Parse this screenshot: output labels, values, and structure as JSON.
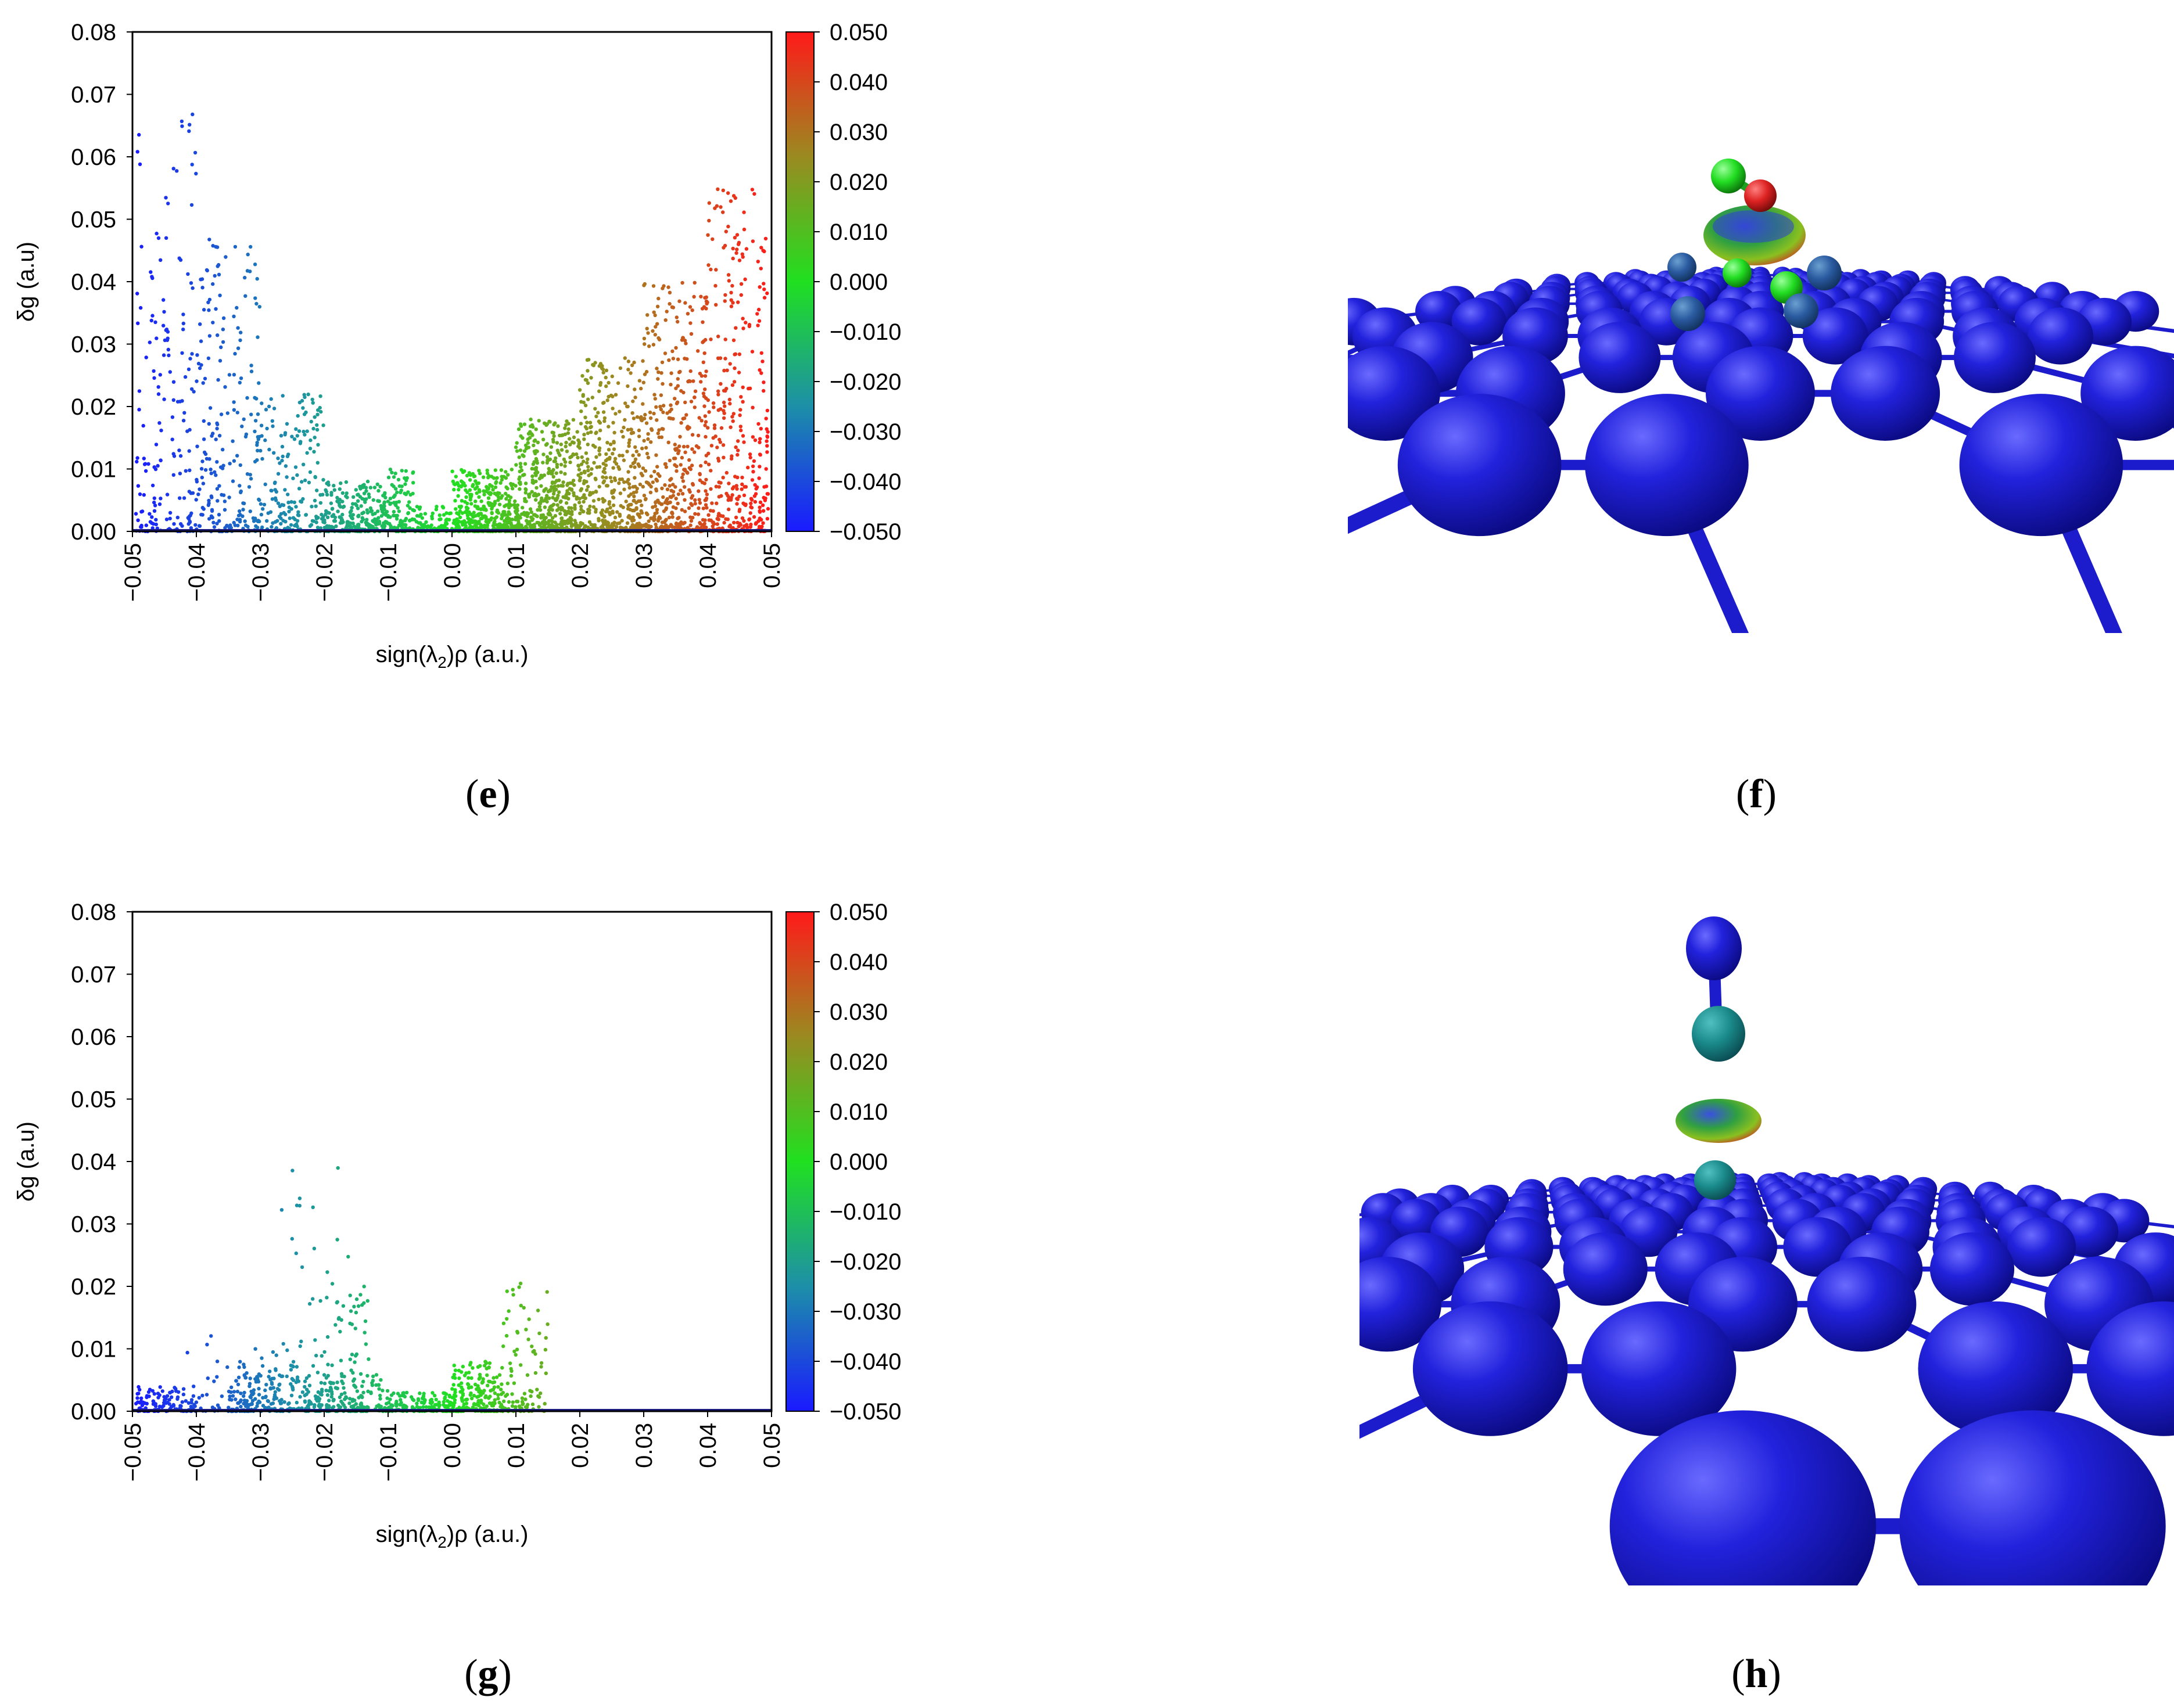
{
  "panels": [
    {
      "id": "e",
      "caption_letter": "e",
      "open": "(",
      "close": ")"
    },
    {
      "id": "f",
      "caption_letter": "f",
      "open": "(",
      "close": ")"
    },
    {
      "id": "g",
      "caption_letter": "g",
      "open": "(",
      "close": ")"
    },
    {
      "id": "h",
      "caption_letter": "h",
      "open": "(",
      "close": ")"
    }
  ],
  "colors": {
    "blue": "#1a1acc",
    "green": "#20d020",
    "red": "#e02020",
    "bond": "#1c1ccc"
  },
  "chart_data": [
    {
      "id": "e",
      "type": "scatter",
      "xlabel": "sign(λ₂)ρ (a.u.)",
      "xlabel_prefix": "sign(λ",
      "xlabel_sub": "2",
      "xlabel_suffix": ")ρ (a.u.)",
      "ylabel": "δg (a.u)",
      "xlim": [
        -0.05,
        0.05
      ],
      "ylim": [
        0.0,
        0.08
      ],
      "xticks": [
        "−0.05",
        "−0.04",
        "−0.03",
        "−0.02",
        "−0.01",
        "0.00",
        "0.01",
        "0.02",
        "0.03",
        "0.04",
        "0.05"
      ],
      "yticks": [
        "0.00",
        "0.01",
        "0.02",
        "0.03",
        "0.04",
        "0.05",
        "0.06",
        "0.07",
        "0.08"
      ],
      "colorbar": {
        "range": [
          -0.05,
          0.05
        ],
        "ticks": [
          "0.050",
          "0.040",
          "0.030",
          "0.020",
          "0.010",
          "0.000",
          "−0.010",
          "−0.020",
          "−0.030",
          "−0.040",
          "−0.050"
        ]
      },
      "regions": [
        {
          "x0": -0.0495,
          "x1": -0.04,
          "ymax": 0.068,
          "n": 180
        },
        {
          "x0": -0.04,
          "x1": -0.03,
          "ymax": 0.05,
          "n": 220
        },
        {
          "x0": -0.03,
          "x1": -0.02,
          "ymax": 0.022,
          "n": 200
        },
        {
          "x0": -0.02,
          "x1": -0.01,
          "ymax": 0.008,
          "n": 260
        },
        {
          "x0": -0.01,
          "x1": -0.006,
          "ymax": 0.01,
          "n": 100
        },
        {
          "x0": -0.006,
          "x1": 0.0,
          "ymax": 0.004,
          "n": 80
        },
        {
          "x0": 0.0,
          "x1": 0.01,
          "ymax": 0.01,
          "n": 400
        },
        {
          "x0": 0.01,
          "x1": 0.02,
          "ymax": 0.018,
          "n": 500
        },
        {
          "x0": 0.02,
          "x1": 0.03,
          "ymax": 0.028,
          "n": 450
        },
        {
          "x0": 0.03,
          "x1": 0.04,
          "ymax": 0.04,
          "n": 420
        },
        {
          "x0": 0.04,
          "x1": 0.0495,
          "ymax": 0.055,
          "n": 350
        }
      ]
    },
    {
      "id": "g",
      "type": "scatter",
      "xlabel": "sign(λ₂)ρ (a.u.)",
      "xlabel_prefix": "sign(λ",
      "xlabel_sub": "2",
      "xlabel_suffix": ")ρ (a.u.)",
      "ylabel": "δg (a.u)",
      "xlim": [
        -0.05,
        0.05
      ],
      "ylim": [
        0.0,
        0.08
      ],
      "xticks": [
        "−0.05",
        "−0.04",
        "−0.03",
        "−0.02",
        "−0.01",
        "0.00",
        "0.01",
        "0.02",
        "0.03",
        "0.04",
        "0.05"
      ],
      "yticks": [
        "0.00",
        "0.01",
        "0.02",
        "0.03",
        "0.04",
        "0.05",
        "0.06",
        "0.07",
        "0.08"
      ],
      "colorbar": {
        "range": [
          -0.05,
          0.05
        ],
        "ticks": [
          "0.050",
          "0.040",
          "0.030",
          "0.020",
          "0.010",
          "0.000",
          "−0.010",
          "−0.020",
          "−0.030",
          "−0.040",
          "−0.050"
        ]
      },
      "regions": [
        {
          "x0": -0.0495,
          "x1": -0.04,
          "ymax": 0.004,
          "n": 120
        },
        {
          "x0": -0.042,
          "x1": -0.035,
          "ymax": 0.013,
          "n": 25
        },
        {
          "x0": -0.035,
          "x1": -0.027,
          "ymax": 0.01,
          "n": 50
        },
        {
          "x0": -0.027,
          "x1": -0.016,
          "ymax": 0.04,
          "n": 80
        },
        {
          "x0": -0.016,
          "x1": -0.013,
          "ymax": 0.02,
          "n": 40
        },
        {
          "x0": -0.035,
          "x1": -0.01,
          "ymax": 0.006,
          "n": 320
        },
        {
          "x0": -0.01,
          "x1": 0.0,
          "ymax": 0.003,
          "n": 150
        },
        {
          "x0": 0.0,
          "x1": 0.008,
          "ymax": 0.008,
          "n": 200
        },
        {
          "x0": 0.008,
          "x1": 0.015,
          "ymax": 0.021,
          "n": 90
        }
      ]
    }
  ]
}
